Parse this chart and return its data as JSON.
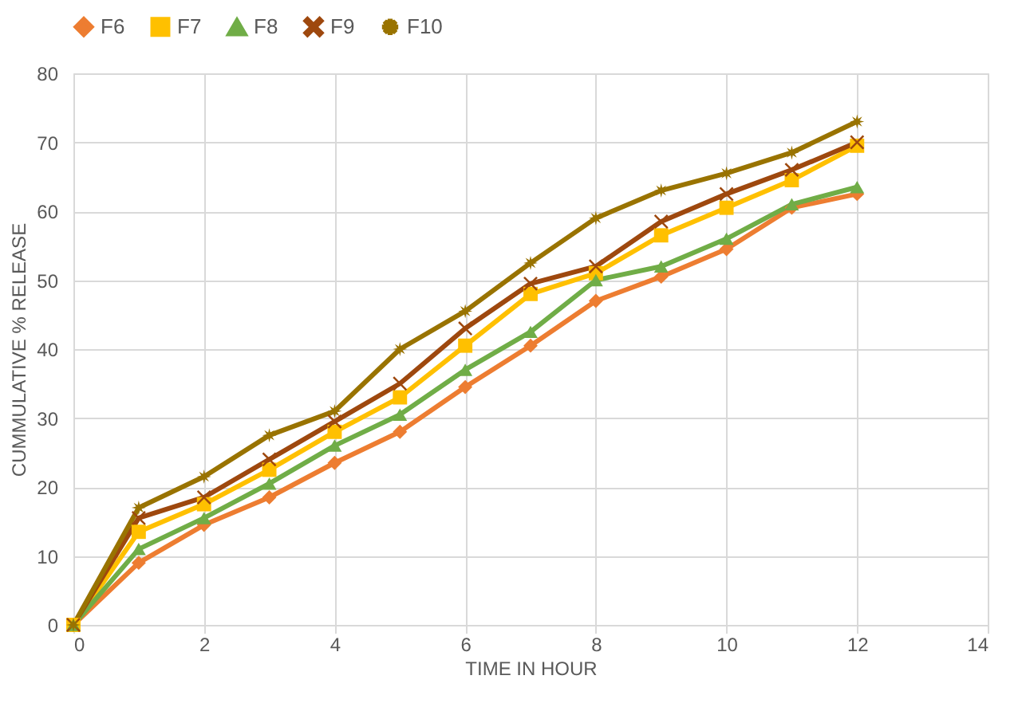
{
  "chart_data": {
    "type": "line",
    "xlabel": "TIME IN HOUR",
    "ylabel": "CUMMULATIVE % RELEASE",
    "x": [
      0,
      1,
      2,
      3,
      4,
      5,
      6,
      7,
      8,
      9,
      10,
      11,
      12
    ],
    "series": [
      {
        "name": "F6",
        "color": "#ed7d31",
        "marker": "diamond",
        "values": [
          0,
          9,
          14.5,
          18.5,
          23.5,
          28,
          34.5,
          40.5,
          47,
          50.5,
          54.5,
          60.5,
          62.5
        ]
      },
      {
        "name": "F7",
        "color": "#ffc000",
        "marker": "square",
        "values": [
          0,
          13.5,
          17.5,
          22.5,
          28,
          33,
          40.5,
          48,
          51,
          56.5,
          60.5,
          64.5,
          69.5
        ]
      },
      {
        "name": "F8",
        "color": "#70ad47",
        "marker": "triangle",
        "values": [
          0,
          11,
          15.5,
          20.5,
          26,
          30.5,
          37,
          42.5,
          50,
          52,
          56,
          61,
          63.5
        ]
      },
      {
        "name": "F9",
        "color": "#9e480e",
        "marker": "cross",
        "values": [
          0,
          15.5,
          18.5,
          24,
          29.5,
          35,
          43,
          49.5,
          52,
          58.5,
          62.5,
          66,
          70
        ]
      },
      {
        "name": "F10",
        "color": "#997300",
        "marker": "star",
        "values": [
          0,
          17,
          21.5,
          27.5,
          31,
          40,
          45.5,
          52.5,
          59,
          63,
          65.5,
          68.5,
          73
        ]
      }
    ],
    "xlim": [
      0,
      14
    ],
    "xticks": [
      0,
      2,
      4,
      6,
      8,
      10,
      12,
      14
    ],
    "ylim": [
      0,
      80
    ],
    "yticks": [
      0,
      10,
      20,
      30,
      40,
      50,
      60,
      70,
      80
    ],
    "grid": true,
    "legend": "top",
    "line_style": "solid"
  }
}
